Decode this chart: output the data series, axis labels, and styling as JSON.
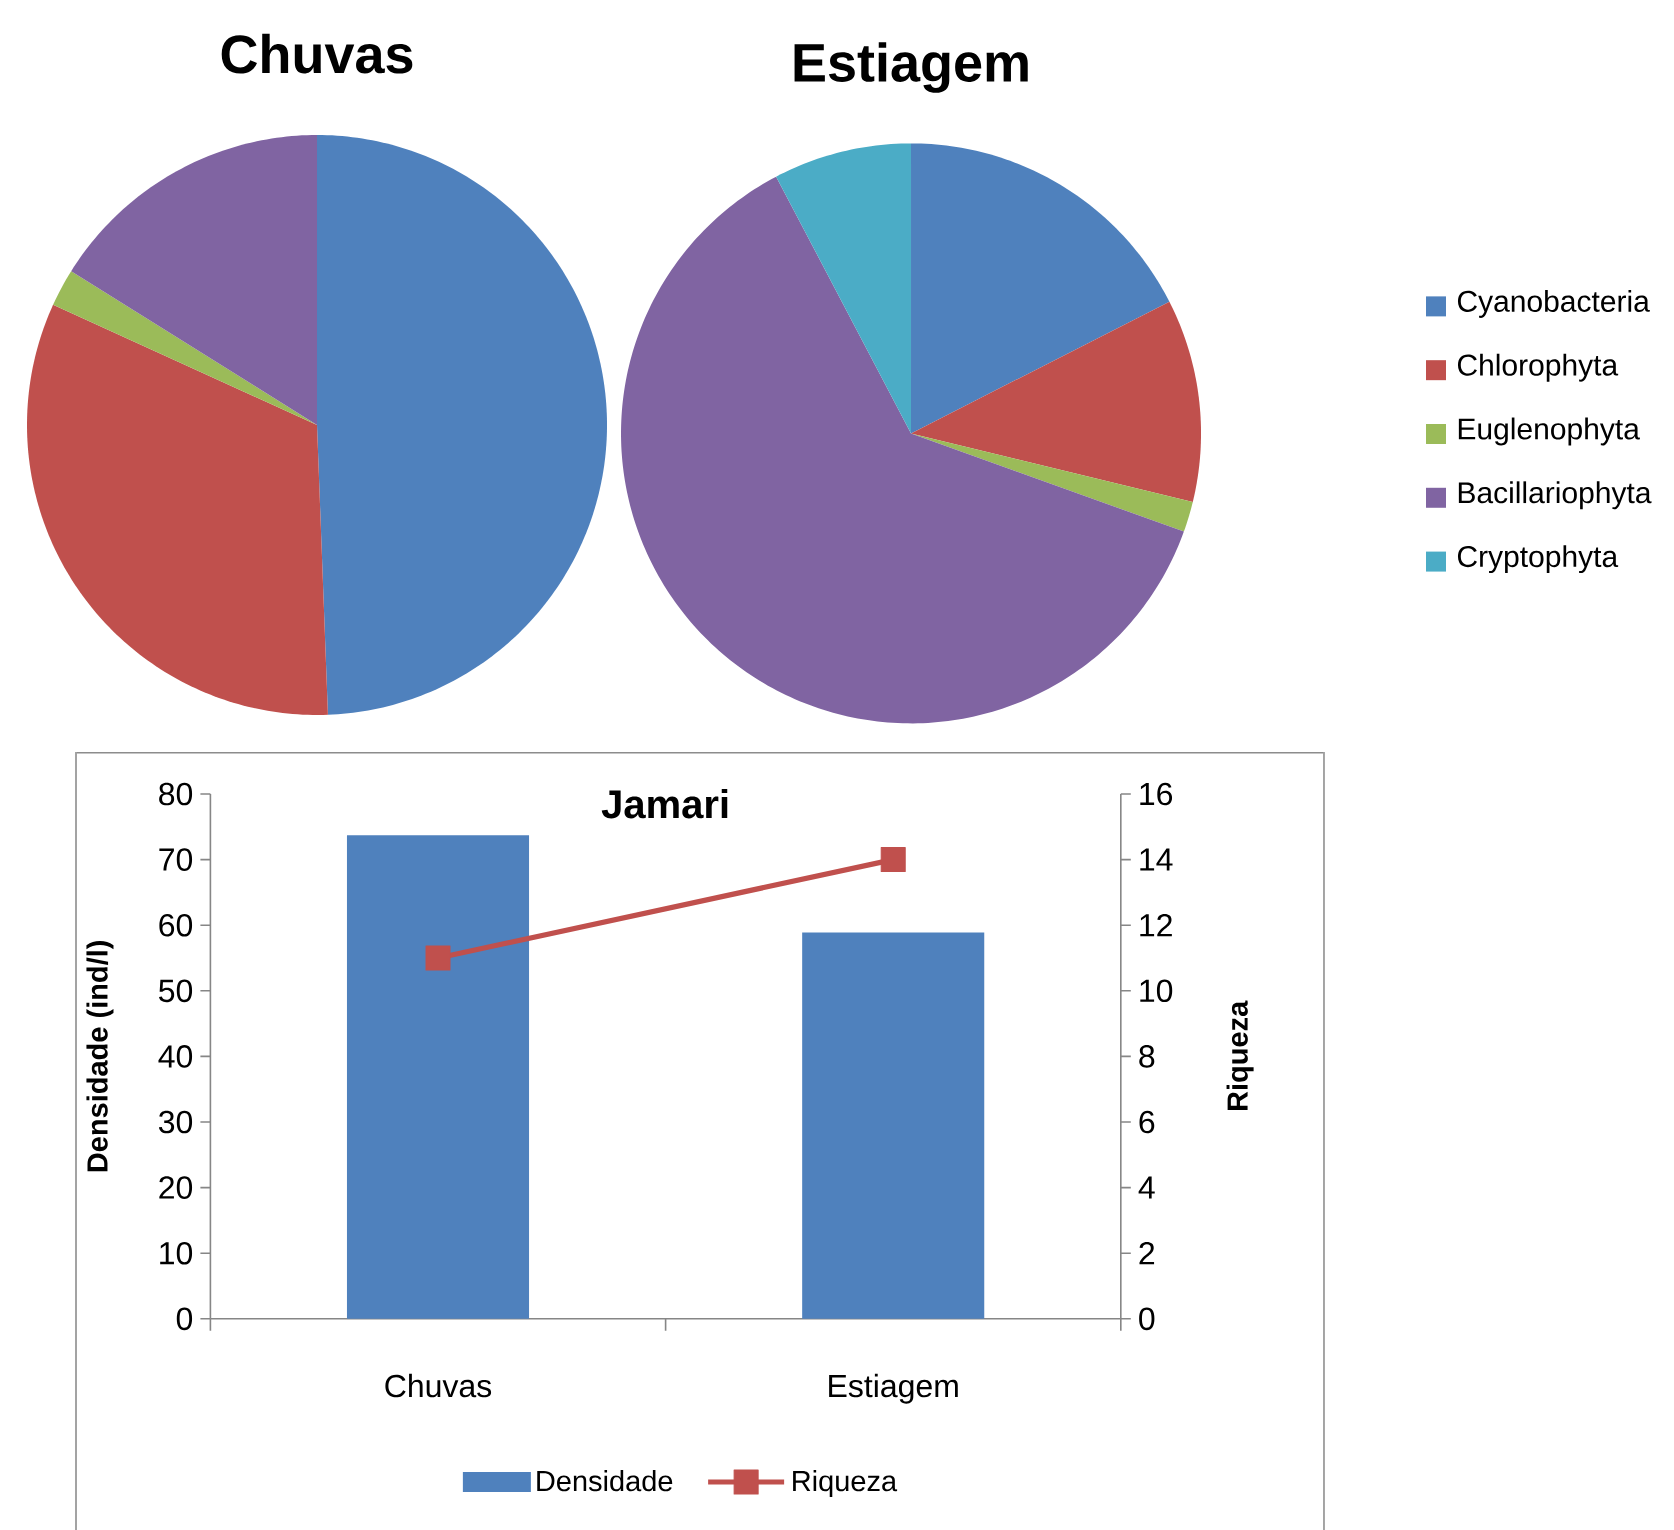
{
  "chart_data": [
    {
      "type": "pie",
      "title": "Chuvas",
      "categories": [
        null,
        null,
        null,
        null
      ],
      "colors": [
        "#4f81bd",
        "#c0504d",
        "#9bbb59",
        "#8064a2"
      ],
      "values": [
        49.4,
        32.4,
        2.1,
        16.1
      ]
    },
    {
      "type": "pie",
      "title": "Estiagem",
      "categories": [
        "Cyanobacteria",
        "Chlorophyta",
        "Euglenophyta",
        "Bacillariophyta",
        "Cryptophyta"
      ],
      "colors": [
        "#4f81bd",
        "#c0504d",
        "#9bbb59",
        "#8064a2",
        "#4bacc6"
      ],
      "values": [
        17.5,
        11.3,
        1.7,
        61.8,
        7.7
      ],
      "legend": "right"
    },
    {
      "type": "bar",
      "title": "Jamari",
      "categories": [
        "Chuvas",
        "Estiagem"
      ],
      "ylabel": "Densidade (ind/l)",
      "y2label": "Riqueza",
      "ylim": [
        0,
        80
      ],
      "yticks": [
        0,
        10,
        20,
        30,
        40,
        50,
        60,
        70,
        80
      ],
      "y2lim": [
        0,
        16
      ],
      "y2ticks": [
        0,
        2,
        4,
        6,
        8,
        10,
        12,
        14,
        16
      ],
      "series": [
        {
          "name": "Densidade",
          "color": "#4f81bd",
          "values": [
            73.7,
            58.9
          ]
        },
        {
          "name": "Riqueza",
          "type": "line",
          "axis": "y2",
          "color": "#c0504d",
          "marker": "square",
          "values": [
            11,
            14
          ]
        }
      ],
      "legend": "bottom"
    }
  ]
}
